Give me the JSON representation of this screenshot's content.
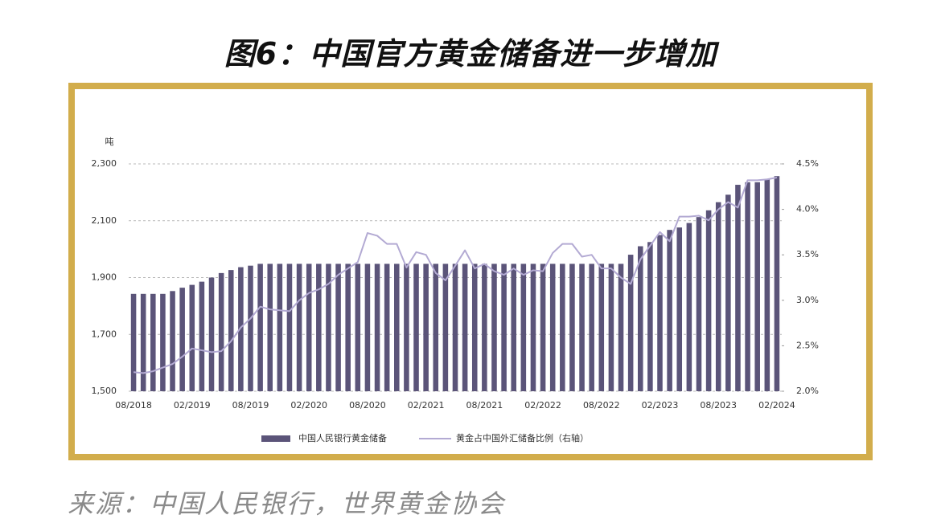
{
  "chart_data": {
    "type": "bar",
    "title": "图6：中国官方黄金储备进一步增加",
    "source": "来源：中国人民银行，世界黄金协会",
    "y_label": "吨",
    "categories": [
      "08/2018",
      null,
      null,
      null,
      null,
      null,
      "02/2019",
      null,
      null,
      null,
      null,
      null,
      "08/2019",
      null,
      null,
      null,
      null,
      null,
      "02/2020",
      null,
      null,
      null,
      null,
      null,
      "08/2020",
      null,
      null,
      null,
      null,
      null,
      "02/2021",
      null,
      null,
      null,
      null,
      null,
      "08/2021",
      null,
      null,
      null,
      null,
      null,
      "02/2022",
      null,
      null,
      null,
      null,
      null,
      "08/2022",
      null,
      null,
      null,
      null,
      null,
      "02/2023",
      null,
      null,
      null,
      null,
      null,
      "08/2023",
      null,
      null,
      null,
      null,
      null,
      "02/2024"
    ],
    "series": [
      {
        "name": "中国人民银行黄金储备",
        "type": "bar",
        "color": "#5b5479",
        "values": [
          1842.6,
          1842.6,
          1842.6,
          1842.6,
          1852.5,
          1864.3,
          1874.3,
          1885.5,
          1900.0,
          1915.9,
          1926.5,
          1936.5,
          1941.9,
          1948.3,
          1948.3,
          1948.3,
          1948.3,
          1948.3,
          1948.3,
          1948.3,
          1948.3,
          1948.3,
          1948.3,
          1948.3,
          1948.3,
          1948.3,
          1948.3,
          1948.3,
          1948.3,
          1948.3,
          1948.3,
          1948.3,
          1948.3,
          1948.3,
          1948.3,
          1948.3,
          1948.3,
          1948.3,
          1948.3,
          1948.3,
          1948.3,
          1948.3,
          1948.3,
          1948.3,
          1948.3,
          1948.3,
          1948.3,
          1948.3,
          1948.3,
          1948.3,
          1948.3,
          1980.4,
          2010.2,
          2024.9,
          2049.6,
          2067.7,
          2076.2,
          2092.0,
          2113.0,
          2136.6,
          2165.2,
          2191.5,
          2226.4,
          2235.4,
          2235.4,
          2245.2,
          2257.0
        ]
      },
      {
        "name": "黄金占中国外汇储备比例（右轴）",
        "type": "line",
        "axis": "y2",
        "color": "#b3aad3",
        "values": [
          2.21,
          2.2,
          2.22,
          2.26,
          2.3,
          2.38,
          2.47,
          2.45,
          2.43,
          2.44,
          2.55,
          2.7,
          2.8,
          2.93,
          2.9,
          2.89,
          2.88,
          3.0,
          3.08,
          3.12,
          3.18,
          3.28,
          3.35,
          3.42,
          3.74,
          3.71,
          3.62,
          3.62,
          3.36,
          3.53,
          3.5,
          3.3,
          3.22,
          3.38,
          3.55,
          3.35,
          3.4,
          3.32,
          3.28,
          3.35,
          3.28,
          3.33,
          3.32,
          3.52,
          3.62,
          3.62,
          3.48,
          3.5,
          3.35,
          3.35,
          3.25,
          3.18,
          3.45,
          3.6,
          3.75,
          3.65,
          3.92,
          3.92,
          3.93,
          3.88,
          4.0,
          4.08,
          4.02,
          4.32,
          4.32,
          4.33,
          4.35
        ]
      }
    ],
    "ylim": [
      1500,
      2300
    ],
    "yticks": [
      {
        "value": 1500,
        "label": "1,500"
      },
      {
        "value": 1700,
        "label": "1,700"
      },
      {
        "value": 1900,
        "label": "1,900"
      },
      {
        "value": 2100,
        "label": "2,100"
      },
      {
        "value": 2300,
        "label": "2,300"
      }
    ],
    "y2lim": [
      2.0,
      4.5
    ],
    "y2ticks": [
      {
        "value": 2.0,
        "label": "2.0%"
      },
      {
        "value": 2.5,
        "label": "2.5%"
      },
      {
        "value": 3.0,
        "label": "3.0%"
      },
      {
        "value": 3.5,
        "label": "3.5%"
      },
      {
        "value": 4.0,
        "label": "4.0%"
      },
      {
        "value": 4.5,
        "label": "4.5%"
      }
    ],
    "grid": true
  }
}
